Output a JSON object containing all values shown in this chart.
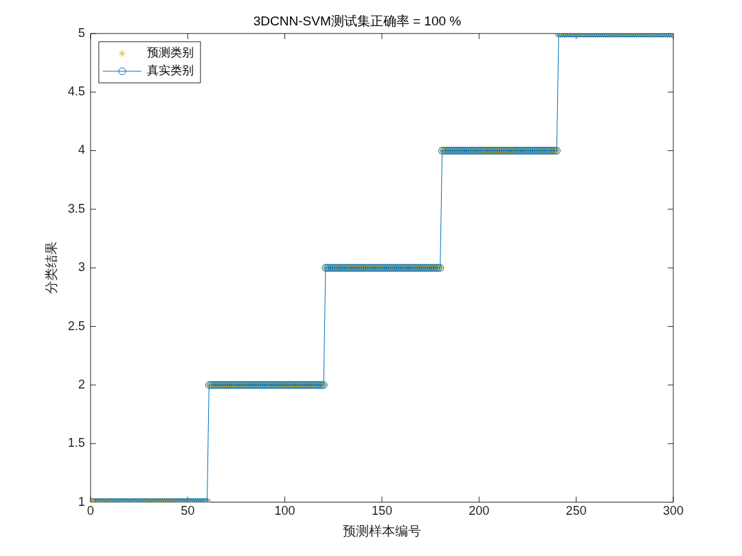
{
  "chart_data": {
    "type": "line",
    "title": "3DCNN-SVM测试集正确率 = 100 %",
    "xlabel": "预测样本编号",
    "ylabel": "分类结果",
    "legend": "top left",
    "x": [
      1,
      2,
      3,
      4,
      5,
      6,
      7,
      8,
      9,
      10,
      11,
      12,
      13,
      14,
      15,
      16,
      17,
      18,
      19,
      20,
      21,
      22,
      23,
      24,
      25,
      26,
      27,
      28,
      29,
      30,
      31,
      32,
      33,
      34,
      35,
      36,
      37,
      38,
      39,
      40,
      41,
      42,
      43,
      44,
      45,
      46,
      47,
      48,
      49,
      50,
      51,
      52,
      53,
      54,
      55,
      56,
      57,
      58,
      59,
      60,
      61,
      62,
      63,
      64,
      65,
      66,
      67,
      68,
      69,
      70,
      71,
      72,
      73,
      74,
      75,
      76,
      77,
      78,
      79,
      80,
      81,
      82,
      83,
      84,
      85,
      86,
      87,
      88,
      89,
      90,
      91,
      92,
      93,
      94,
      95,
      96,
      97,
      98,
      99,
      100,
      101,
      102,
      103,
      104,
      105,
      106,
      107,
      108,
      109,
      110,
      111,
      112,
      113,
      114,
      115,
      116,
      117,
      118,
      119,
      120,
      121,
      122,
      123,
      124,
      125,
      126,
      127,
      128,
      129,
      130,
      131,
      132,
      133,
      134,
      135,
      136,
      137,
      138,
      139,
      140,
      141,
      142,
      143,
      144,
      145,
      146,
      147,
      148,
      149,
      150,
      151,
      152,
      153,
      154,
      155,
      156,
      157,
      158,
      159,
      160,
      161,
      162,
      163,
      164,
      165,
      166,
      167,
      168,
      169,
      170,
      171,
      172,
      173,
      174,
      175,
      176,
      177,
      178,
      179,
      180,
      181,
      182,
      183,
      184,
      185,
      186,
      187,
      188,
      189,
      190,
      191,
      192,
      193,
      194,
      195,
      196,
      197,
      198,
      199,
      200,
      201,
      202,
      203,
      204,
      205,
      206,
      207,
      208,
      209,
      210,
      211,
      212,
      213,
      214,
      215,
      216,
      217,
      218,
      219,
      220,
      221,
      222,
      223,
      224,
      225,
      226,
      227,
      228,
      229,
      230,
      231,
      232,
      233,
      234,
      235,
      236,
      237,
      238,
      239,
      240,
      241,
      242,
      243,
      244,
      245,
      246,
      247,
      248,
      249,
      250,
      251,
      252,
      253,
      254,
      255,
      256,
      257,
      258,
      259,
      260,
      261,
      262,
      263,
      264,
      265,
      266,
      267,
      268,
      269,
      270,
      271,
      272,
      273,
      274,
      275,
      276,
      277,
      278,
      279,
      280,
      281,
      282,
      283,
      284,
      285,
      286,
      287,
      288,
      289,
      290,
      291,
      292,
      293,
      294,
      295,
      296,
      297,
      298,
      299,
      300
    ],
    "series": [
      {
        "name": "预测类别",
        "type": "scatter",
        "color": "#edb120",
        "marker": "cross",
        "values": [
          1,
          1,
          1,
          1,
          1,
          1,
          1,
          1,
          1,
          1,
          1,
          1,
          1,
          1,
          1,
          1,
          1,
          1,
          1,
          1,
          1,
          1,
          1,
          1,
          1,
          1,
          1,
          1,
          1,
          1,
          1,
          1,
          1,
          1,
          1,
          1,
          1,
          1,
          1,
          1,
          1,
          1,
          1,
          1,
          1,
          1,
          1,
          1,
          1,
          1,
          1,
          1,
          1,
          1,
          1,
          1,
          1,
          1,
          1,
          1,
          2,
          2,
          2,
          2,
          2,
          2,
          2,
          2,
          2,
          2,
          2,
          2,
          2,
          2,
          2,
          2,
          2,
          2,
          2,
          2,
          2,
          2,
          2,
          2,
          2,
          2,
          2,
          2,
          2,
          2,
          2,
          2,
          2,
          2,
          2,
          2,
          2,
          2,
          2,
          2,
          2,
          2,
          2,
          2,
          2,
          2,
          2,
          2,
          2,
          2,
          2,
          2,
          2,
          2,
          2,
          2,
          2,
          2,
          2,
          2,
          3,
          3,
          3,
          3,
          3,
          3,
          3,
          3,
          3,
          3,
          3,
          3,
          3,
          3,
          3,
          3,
          3,
          3,
          3,
          3,
          3,
          3,
          3,
          3,
          3,
          3,
          3,
          3,
          3,
          3,
          3,
          3,
          3,
          3,
          3,
          3,
          3,
          3,
          3,
          3,
          3,
          3,
          3,
          3,
          3,
          3,
          3,
          3,
          3,
          3,
          3,
          3,
          3,
          3,
          3,
          3,
          3,
          3,
          3,
          3,
          4,
          4,
          4,
          4,
          4,
          4,
          4,
          4,
          4,
          4,
          4,
          4,
          4,
          4,
          4,
          4,
          4,
          4,
          4,
          4,
          4,
          4,
          4,
          4,
          4,
          4,
          4,
          4,
          4,
          4,
          4,
          4,
          4,
          4,
          4,
          4,
          4,
          4,
          4,
          4,
          4,
          4,
          4,
          4,
          4,
          4,
          4,
          4,
          4,
          4,
          4,
          4,
          4,
          4,
          4,
          4,
          4,
          4,
          4,
          4,
          5,
          5,
          5,
          5,
          5,
          5,
          5,
          5,
          5,
          5,
          5,
          5,
          5,
          5,
          5,
          5,
          5,
          5,
          5,
          5,
          5,
          5,
          5,
          5,
          5,
          5,
          5,
          5,
          5,
          5,
          5,
          5,
          5,
          5,
          5,
          5,
          5,
          5,
          5,
          5,
          5,
          5,
          5,
          5,
          5,
          5,
          5,
          5,
          5,
          5,
          5,
          5,
          5,
          5,
          5,
          5,
          5,
          5,
          5,
          5
        ]
      },
      {
        "name": "真实类别",
        "color": "#0072bd",
        "marker": "circle",
        "values": [
          1,
          1,
          1,
          1,
          1,
          1,
          1,
          1,
          1,
          1,
          1,
          1,
          1,
          1,
          1,
          1,
          1,
          1,
          1,
          1,
          1,
          1,
          1,
          1,
          1,
          1,
          1,
          1,
          1,
          1,
          1,
          1,
          1,
          1,
          1,
          1,
          1,
          1,
          1,
          1,
          1,
          1,
          1,
          1,
          1,
          1,
          1,
          1,
          1,
          1,
          1,
          1,
          1,
          1,
          1,
          1,
          1,
          1,
          1,
          1,
          2,
          2,
          2,
          2,
          2,
          2,
          2,
          2,
          2,
          2,
          2,
          2,
          2,
          2,
          2,
          2,
          2,
          2,
          2,
          2,
          2,
          2,
          2,
          2,
          2,
          2,
          2,
          2,
          2,
          2,
          2,
          2,
          2,
          2,
          2,
          2,
          2,
          2,
          2,
          2,
          2,
          2,
          2,
          2,
          2,
          2,
          2,
          2,
          2,
          2,
          2,
          2,
          2,
          2,
          2,
          2,
          2,
          2,
          2,
          2,
          3,
          3,
          3,
          3,
          3,
          3,
          3,
          3,
          3,
          3,
          3,
          3,
          3,
          3,
          3,
          3,
          3,
          3,
          3,
          3,
          3,
          3,
          3,
          3,
          3,
          3,
          3,
          3,
          3,
          3,
          3,
          3,
          3,
          3,
          3,
          3,
          3,
          3,
          3,
          3,
          3,
          3,
          3,
          3,
          3,
          3,
          3,
          3,
          3,
          3,
          3,
          3,
          3,
          3,
          3,
          3,
          3,
          3,
          3,
          3,
          4,
          4,
          4,
          4,
          4,
          4,
          4,
          4,
          4,
          4,
          4,
          4,
          4,
          4,
          4,
          4,
          4,
          4,
          4,
          4,
          4,
          4,
          4,
          4,
          4,
          4,
          4,
          4,
          4,
          4,
          4,
          4,
          4,
          4,
          4,
          4,
          4,
          4,
          4,
          4,
          4,
          4,
          4,
          4,
          4,
          4,
          4,
          4,
          4,
          4,
          4,
          4,
          4,
          4,
          4,
          4,
          4,
          4,
          4,
          4,
          5,
          5,
          5,
          5,
          5,
          5,
          5,
          5,
          5,
          5,
          5,
          5,
          5,
          5,
          5,
          5,
          5,
          5,
          5,
          5,
          5,
          5,
          5,
          5,
          5,
          5,
          5,
          5,
          5,
          5,
          5,
          5,
          5,
          5,
          5,
          5,
          5,
          5,
          5,
          5,
          5,
          5,
          5,
          5,
          5,
          5,
          5,
          5,
          5,
          5,
          5,
          5,
          5,
          5,
          5,
          5,
          5,
          5,
          5,
          5
        ]
      }
    ],
    "xlim": [
      0,
      300
    ],
    "xticks": [
      0,
      50,
      100,
      150,
      200,
      250,
      300
    ],
    "ylim": [
      1,
      5
    ],
    "yticks": [
      1,
      1.5,
      2,
      2.5,
      3,
      3.5,
      4,
      4.5,
      5
    ]
  }
}
